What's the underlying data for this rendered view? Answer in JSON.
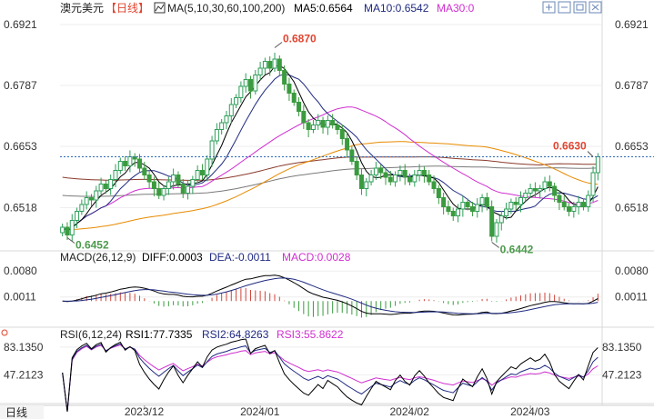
{
  "header": {
    "symbol": "澳元美元",
    "period": "【日线】",
    "ma_label": "MA(5,10,30,60,100,200)",
    "ma5": "MA5:0.6564",
    "ma10": "MA10:0.6542",
    "ma30": "MA30:0"
  },
  "toolbar": {
    "icons": [
      "zoom-in-icon",
      "zoom-out-icon",
      "fullscreen-icon",
      "close-icon"
    ]
  },
  "main_axis": {
    "ylim": [
      0.6435,
      0.6935
    ],
    "ticks": [
      {
        "value": 0.6921,
        "label": "0.6921"
      },
      {
        "value": 0.6787,
        "label": "0.6787"
      },
      {
        "value": 0.6653,
        "label": "0.6653"
      },
      {
        "value": 0.6518,
        "label": "0.6518"
      }
    ]
  },
  "price_annotations": [
    {
      "label": "0.6870",
      "value": 0.687,
      "index": 44,
      "kind": "high"
    },
    {
      "label": "0.6452",
      "value": 0.6452,
      "index": 1,
      "kind": "low"
    },
    {
      "label": "0.6442",
      "value": 0.6442,
      "index": 89,
      "kind": "low"
    },
    {
      "label": "0.6630",
      "value": 0.663,
      "index": 110,
      "kind": "current"
    }
  ],
  "current_price": 0.663,
  "macd_header": {
    "label": "MACD(26,12,9)",
    "diff": "DIFF:0.0003",
    "dea": "DEA:-0.0011",
    "macd": "MACD:0.0028"
  },
  "macd_axis": {
    "ylim": [
      -0.0055,
      0.0095
    ],
    "ticks": [
      {
        "value": 0.008,
        "label": "0.0080"
      },
      {
        "value": 0.0011,
        "label": "0.0011"
      }
    ]
  },
  "rsi_header": {
    "label": "RSI(6,12,24)",
    "rsi1": "RSI1:77.7335",
    "rsi2": "RSI2:64.8263",
    "rsi3": "RSI3:55.8622"
  },
  "rsi_axis": {
    "ylim": [
      15,
      90
    ],
    "ticks": [
      {
        "value": 83.135,
        "label": "83.1350"
      },
      {
        "value": 47.2123,
        "label": "47.2123"
      }
    ]
  },
  "footer": {
    "period_label": "日线",
    "dates": [
      {
        "label": "2023/12",
        "index": 17
      },
      {
        "label": "2024/01",
        "index": 41
      },
      {
        "label": "2024/02",
        "index": 72
      },
      {
        "label": "2024/03",
        "index": 97
      }
    ]
  },
  "colors": {
    "up": "#2f9e5a",
    "down": "#3a9b3f",
    "ma5": "#000000",
    "ma10": "#1f2a80",
    "ma30": "#d02fd0",
    "ma60": "#e88a00",
    "ma100": "#8a3b2c",
    "ma200": "#7a7a7a",
    "accent_red": "#e0442f",
    "ma30_label": "#d02fd0"
  },
  "chart_data": {
    "type": "candlestick",
    "symbol": "澳元美元",
    "interval": "日线",
    "x_count": 112,
    "closes": [
      0.6475,
      0.6458,
      0.649,
      0.651,
      0.6525,
      0.654,
      0.6535,
      0.6555,
      0.657,
      0.656,
      0.658,
      0.66,
      0.662,
      0.661,
      0.663,
      0.6625,
      0.6605,
      0.659,
      0.6575,
      0.656,
      0.6545,
      0.656,
      0.6575,
      0.659,
      0.657,
      0.655,
      0.6565,
      0.658,
      0.66,
      0.659,
      0.6625,
      0.6665,
      0.669,
      0.6705,
      0.672,
      0.6745,
      0.676,
      0.6785,
      0.68,
      0.6775,
      0.681,
      0.6825,
      0.684,
      0.6825,
      0.6845,
      0.682,
      0.679,
      0.677,
      0.675,
      0.673,
      0.6705,
      0.669,
      0.67,
      0.671,
      0.6695,
      0.671,
      0.67,
      0.669,
      0.667,
      0.6645,
      0.662,
      0.659,
      0.656,
      0.6575,
      0.659,
      0.6605,
      0.6595,
      0.6585,
      0.6575,
      0.659,
      0.66,
      0.6585,
      0.6575,
      0.659,
      0.66,
      0.659,
      0.6575,
      0.656,
      0.654,
      0.652,
      0.651,
      0.65,
      0.6515,
      0.653,
      0.652,
      0.651,
      0.6525,
      0.654,
      0.652,
      0.6455,
      0.6485,
      0.65,
      0.6515,
      0.653,
      0.6525,
      0.654,
      0.655,
      0.656,
      0.6555,
      0.656,
      0.6575,
      0.6565,
      0.6545,
      0.653,
      0.652,
      0.651,
      0.652,
      0.653,
      0.652,
      0.6545,
      0.6595,
      0.663
    ],
    "macd_diff_endpoints": [
      -0.0011,
      0.0003
    ],
    "rsi_last": [
      77.7335,
      64.8263,
      55.8622
    ]
  }
}
